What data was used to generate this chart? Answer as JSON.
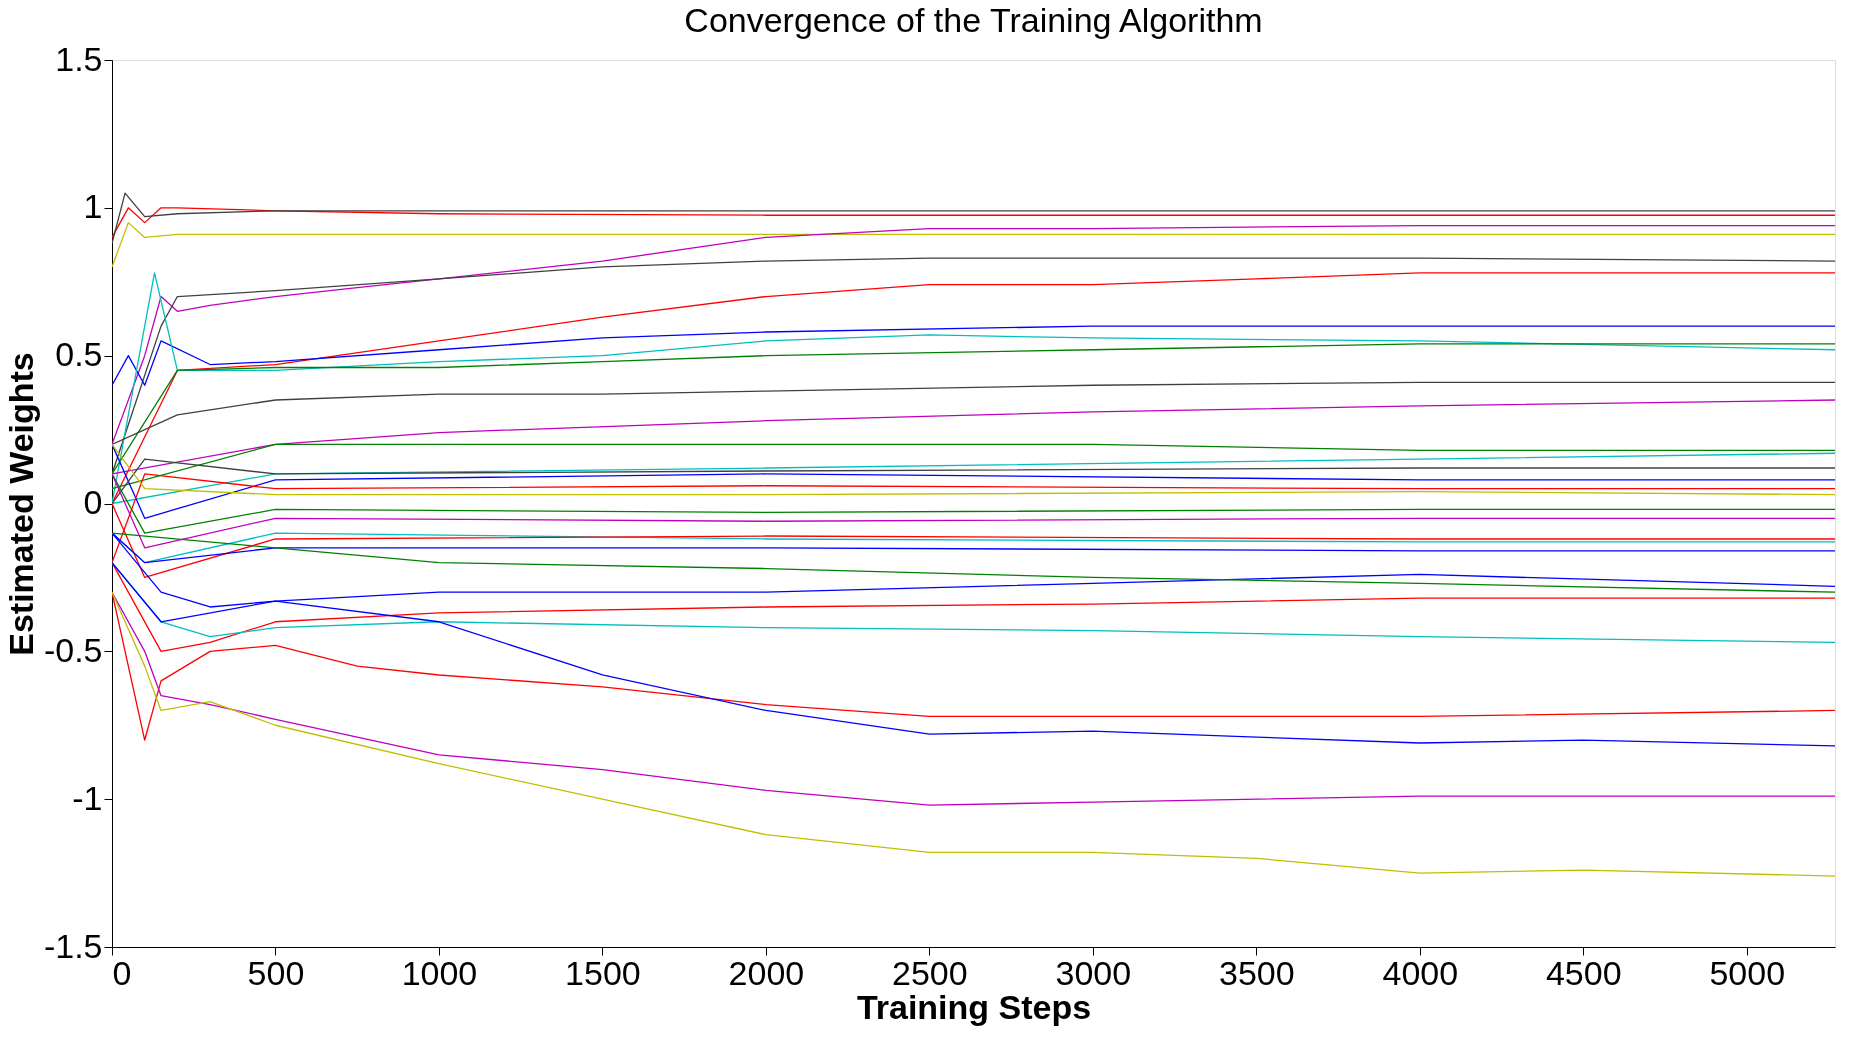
{
  "chart_data": {
    "type": "line",
    "title": "Convergence of the Training Algorithm",
    "xlabel": "Training Steps",
    "ylabel": "Estimated Weights",
    "xlim": [
      0,
      5270
    ],
    "ylim": [
      -1.5,
      1.5
    ],
    "xticks": [
      0,
      500,
      1000,
      1500,
      2000,
      2500,
      3000,
      3500,
      4000,
      4500,
      5000
    ],
    "yticks": [
      -1.5,
      -1,
      -0.5,
      0,
      0.5,
      1,
      1.5
    ],
    "grid": false,
    "legend": false,
    "line_style": "solid",
    "marker": "none",
    "series": [
      {
        "color": "#ff0000",
        "x": [
          0,
          50,
          100,
          150,
          200,
          500,
          1000,
          2000,
          3000,
          4000,
          5270
        ],
        "values": [
          0.9,
          1.0,
          0.95,
          1.0,
          1.0,
          0.99,
          0.98,
          0.975,
          0.975,
          0.975,
          0.975
        ]
      },
      {
        "color": "#404040",
        "x": [
          0,
          40,
          100,
          200,
          500,
          1000,
          2000,
          3000,
          4000,
          5270
        ],
        "values": [
          0.88,
          1.05,
          0.97,
          0.98,
          0.99,
          0.99,
          0.99,
          0.99,
          0.99,
          0.99
        ]
      },
      {
        "color": "#bfbf00",
        "x": [
          0,
          50,
          100,
          200,
          500,
          1000,
          2000,
          3000,
          4000,
          5270
        ],
        "values": [
          0.8,
          0.95,
          0.9,
          0.91,
          0.91,
          0.91,
          0.91,
          0.91,
          0.91,
          0.91
        ]
      },
      {
        "color": "#bf00bf",
        "x": [
          0,
          100,
          150,
          200,
          300,
          500,
          750,
          1000,
          1500,
          2000,
          2500,
          3000,
          4000,
          5270
        ],
        "values": [
          0.2,
          0.5,
          0.7,
          0.65,
          0.67,
          0.7,
          0.73,
          0.76,
          0.82,
          0.9,
          0.93,
          0.93,
          0.94,
          0.94
        ]
      },
      {
        "color": "#404040",
        "x": [
          0,
          150,
          200,
          500,
          1000,
          1500,
          2000,
          2500,
          3000,
          4000,
          5270
        ],
        "values": [
          0.1,
          0.6,
          0.7,
          0.72,
          0.76,
          0.8,
          0.82,
          0.83,
          0.83,
          0.83,
          0.82
        ]
      },
      {
        "color": "#ff0000",
        "x": [
          0,
          200,
          500,
          1000,
          1500,
          2000,
          2500,
          3000,
          3500,
          4000,
          5270
        ],
        "values": [
          0.0,
          0.45,
          0.47,
          0.55,
          0.63,
          0.7,
          0.74,
          0.74,
          0.76,
          0.78,
          0.78
        ]
      },
      {
        "color": "#0000ff",
        "x": [
          0,
          50,
          100,
          150,
          300,
          500,
          1000,
          1500,
          2000,
          3000,
          4000,
          5270
        ],
        "values": [
          0.4,
          0.5,
          0.4,
          0.55,
          0.47,
          0.48,
          0.52,
          0.56,
          0.58,
          0.6,
          0.6,
          0.6
        ]
      },
      {
        "color": "#00bfbf",
        "x": [
          0,
          130,
          200,
          500,
          1000,
          1500,
          2000,
          2500,
          3000,
          4000,
          5270
        ],
        "values": [
          0.0,
          0.78,
          0.45,
          0.45,
          0.48,
          0.5,
          0.55,
          0.57,
          0.56,
          0.55,
          0.52
        ]
      },
      {
        "color": "#008000",
        "x": [
          0,
          200,
          500,
          1000,
          1500,
          2000,
          3000,
          4000,
          5270
        ],
        "values": [
          0.1,
          0.45,
          0.46,
          0.46,
          0.48,
          0.5,
          0.52,
          0.54,
          0.54
        ]
      },
      {
        "color": "#404040",
        "x": [
          0,
          200,
          500,
          1000,
          1500,
          2000,
          3000,
          4000,
          5270
        ],
        "values": [
          0.2,
          0.3,
          0.35,
          0.37,
          0.37,
          0.38,
          0.4,
          0.41,
          0.41
        ]
      },
      {
        "color": "#bf00bf",
        "x": [
          0,
          500,
          1000,
          2000,
          3000,
          4000,
          5270
        ],
        "values": [
          0.1,
          0.2,
          0.24,
          0.28,
          0.31,
          0.33,
          0.35
        ]
      },
      {
        "color": "#008000",
        "x": [
          0,
          500,
          1000,
          2000,
          3000,
          4000,
          5270
        ],
        "values": [
          0.05,
          0.2,
          0.2,
          0.2,
          0.2,
          0.18,
          0.18
        ]
      },
      {
        "color": "#00bfbf",
        "x": [
          0,
          500,
          2000,
          4000,
          5270
        ],
        "values": [
          0.0,
          0.1,
          0.12,
          0.15,
          0.17
        ]
      },
      {
        "color": "#0000ff",
        "x": [
          0,
          100,
          500,
          2000,
          4000,
          5270
        ],
        "values": [
          0.2,
          -0.05,
          0.08,
          0.1,
          0.08,
          0.08
        ]
      },
      {
        "color": "#ff0000",
        "x": [
          0,
          100,
          500,
          2000,
          4000,
          5270
        ],
        "values": [
          -0.2,
          0.1,
          0.05,
          0.06,
          0.05,
          0.05
        ]
      },
      {
        "color": "#008000",
        "x": [
          0,
          100,
          500,
          2000,
          4000,
          5270
        ],
        "values": [
          0.1,
          -0.1,
          -0.02,
          -0.03,
          -0.02,
          -0.02
        ]
      },
      {
        "color": "#404040",
        "x": [
          0,
          100,
          500,
          2000,
          4000,
          5270
        ],
        "values": [
          0.0,
          0.15,
          0.1,
          0.11,
          0.12,
          0.12
        ]
      },
      {
        "color": "#bf00bf",
        "x": [
          0,
          100,
          500,
          2000,
          4000,
          5270
        ],
        "values": [
          0.1,
          -0.15,
          -0.05,
          -0.06,
          -0.05,
          -0.05
        ]
      },
      {
        "color": "#bfbf00",
        "x": [
          0,
          100,
          500,
          2000,
          4000,
          5270
        ],
        "values": [
          0.2,
          0.05,
          0.03,
          0.03,
          0.04,
          0.03
        ]
      },
      {
        "color": "#00bfbf",
        "x": [
          0,
          100,
          500,
          2000,
          4000,
          5270
        ],
        "values": [
          -0.1,
          -0.2,
          -0.1,
          -0.12,
          -0.13,
          -0.13
        ]
      },
      {
        "color": "#ff0000",
        "x": [
          0,
          100,
          500,
          2000,
          4000,
          5270
        ],
        "values": [
          0.0,
          -0.25,
          -0.12,
          -0.11,
          -0.12,
          -0.12
        ]
      },
      {
        "color": "#0000ff",
        "x": [
          0,
          100,
          500,
          2000,
          4000,
          5270
        ],
        "values": [
          -0.1,
          -0.2,
          -0.15,
          -0.15,
          -0.16,
          -0.16
        ]
      },
      {
        "color": "#0000ff",
        "x": [
          0,
          150,
          300,
          500,
          1000,
          2000,
          3000,
          4000,
          5270
        ],
        "values": [
          -0.1,
          -0.3,
          -0.35,
          -0.33,
          -0.3,
          -0.3,
          -0.27,
          -0.24,
          -0.28
        ]
      },
      {
        "color": "#008000",
        "x": [
          0,
          500,
          1000,
          2000,
          3000,
          4000,
          5270
        ],
        "values": [
          -0.1,
          -0.15,
          -0.2,
          -0.22,
          -0.25,
          -0.27,
          -0.3
        ]
      },
      {
        "color": "#ff0000",
        "x": [
          0,
          150,
          300,
          500,
          1000,
          2000,
          3000,
          4000,
          5270
        ],
        "values": [
          -0.2,
          -0.5,
          -0.47,
          -0.4,
          -0.37,
          -0.35,
          -0.34,
          -0.32,
          -0.32
        ]
      },
      {
        "color": "#00bfbf",
        "x": [
          0,
          150,
          300,
          500,
          1000,
          2000,
          3000,
          4000,
          5270
        ],
        "values": [
          -0.2,
          -0.4,
          -0.45,
          -0.42,
          -0.4,
          -0.42,
          -0.43,
          -0.45,
          -0.47
        ]
      },
      {
        "color": "#ff0000",
        "x": [
          0,
          100,
          150,
          300,
          500,
          750,
          1000,
          1500,
          2000,
          2500,
          3000,
          4000,
          5270
        ],
        "values": [
          -0.3,
          -0.8,
          -0.6,
          -0.5,
          -0.48,
          -0.55,
          -0.58,
          -0.62,
          -0.68,
          -0.72,
          -0.72,
          -0.72,
          -0.7
        ]
      },
      {
        "color": "#0000ff",
        "x": [
          0,
          150,
          500,
          1000,
          1500,
          2000,
          2500,
          3000,
          3500,
          4000,
          4500,
          5270
        ],
        "values": [
          -0.2,
          -0.4,
          -0.33,
          -0.4,
          -0.58,
          -0.7,
          -0.78,
          -0.77,
          -0.79,
          -0.81,
          -0.8,
          -0.82
        ]
      },
      {
        "color": "#bf00bf",
        "x": [
          0,
          100,
          150,
          300,
          500,
          1000,
          1500,
          2000,
          2500,
          3000,
          4000,
          5270
        ],
        "values": [
          -0.3,
          -0.5,
          -0.65,
          -0.68,
          -0.73,
          -0.85,
          -0.9,
          -0.97,
          -1.02,
          -1.01,
          -0.99,
          -0.99
        ]
      },
      {
        "color": "#bfbf00",
        "x": [
          0,
          100,
          150,
          300,
          500,
          1000,
          1500,
          2000,
          2500,
          3000,
          3500,
          4000,
          4500,
          5270
        ],
        "values": [
          -0.3,
          -0.55,
          -0.7,
          -0.67,
          -0.75,
          -0.88,
          -1.0,
          -1.12,
          -1.18,
          -1.18,
          -1.2,
          -1.25,
          -1.24,
          -1.26
        ]
      }
    ]
  }
}
